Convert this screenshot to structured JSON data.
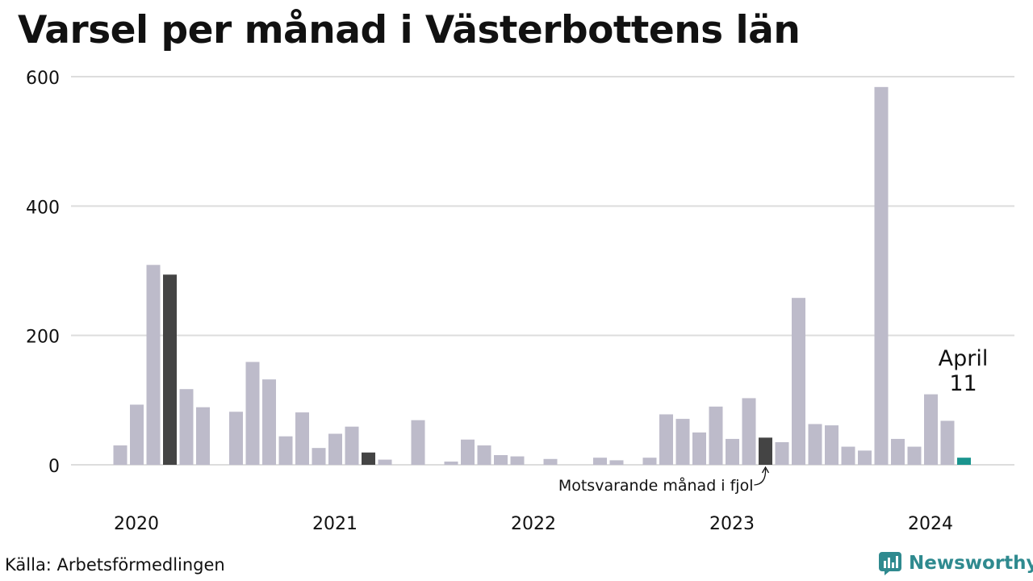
{
  "title": "Varsel per månad i Västerbottens län",
  "source": "Källa: Arbetsförmedlingen",
  "brand": {
    "name": "Newsworthy",
    "icon": "newsworthy-logo-icon"
  },
  "colors": {
    "default": "#bdbbca",
    "same_month_last_year": "#444444",
    "current": "#1a948e",
    "grid": "#dddddd"
  },
  "chart_data": {
    "type": "bar",
    "title": "Varsel per månad i Västerbottens län",
    "xlabel": "",
    "ylabel": "",
    "ylim": [
      0,
      600
    ],
    "yticks": [
      0,
      200,
      400,
      600
    ],
    "ytick_labels": [
      "0",
      "200",
      "400",
      "600"
    ],
    "grid": true,
    "year_labels": [
      {
        "label": "2020",
        "month": "2020-01"
      },
      {
        "label": "2021",
        "month": "2021-01"
      },
      {
        "label": "2022",
        "month": "2022-01"
      },
      {
        "label": "2023",
        "month": "2023-01"
      },
      {
        "label": "2024",
        "month": "2024-01"
      }
    ],
    "categories": [
      "2019-12",
      "2020-01",
      "2020-02",
      "2020-03",
      "2020-04",
      "2020-05",
      "2020-06",
      "2020-07",
      "2020-08",
      "2020-09",
      "2020-10",
      "2020-11",
      "2020-12",
      "2021-01",
      "2021-02",
      "2021-03",
      "2021-04",
      "2021-05",
      "2021-06",
      "2021-07",
      "2021-08",
      "2021-09",
      "2021-10",
      "2021-11",
      "2021-12",
      "2022-01",
      "2022-02",
      "2022-03",
      "2022-04",
      "2022-05",
      "2022-06",
      "2022-07",
      "2022-08",
      "2022-09",
      "2022-10",
      "2022-11",
      "2022-12",
      "2023-01",
      "2023-02",
      "2023-03",
      "2023-04",
      "2023-05",
      "2023-06",
      "2023-07",
      "2023-08",
      "2023-09",
      "2023-10",
      "2023-11",
      "2023-12",
      "2024-01",
      "2024-02",
      "2024-03",
      "2024-04"
    ],
    "values": [
      0,
      30,
      93,
      309,
      294,
      117,
      89,
      0,
      82,
      159,
      132,
      44,
      81,
      26,
      48,
      59,
      19,
      8,
      0,
      69,
      0,
      5,
      39,
      30,
      15,
      13,
      0,
      9,
      0,
      0,
      11,
      7,
      0,
      11,
      78,
      71,
      50,
      90,
      40,
      103,
      42,
      35,
      258,
      63,
      61,
      28,
      22,
      584,
      40,
      28,
      109,
      68,
      11
    ],
    "highlight_same_month_last_year": [
      "2020-04",
      "2021-04",
      "2023-04"
    ],
    "highlight_current": "2024-04",
    "annotations": [
      {
        "text": "Motsvarande månad i fjol",
        "target": "2023-04"
      },
      {
        "text": "April",
        "target": "2024-04"
      },
      {
        "text": "11",
        "target": "2024-04"
      }
    ]
  }
}
